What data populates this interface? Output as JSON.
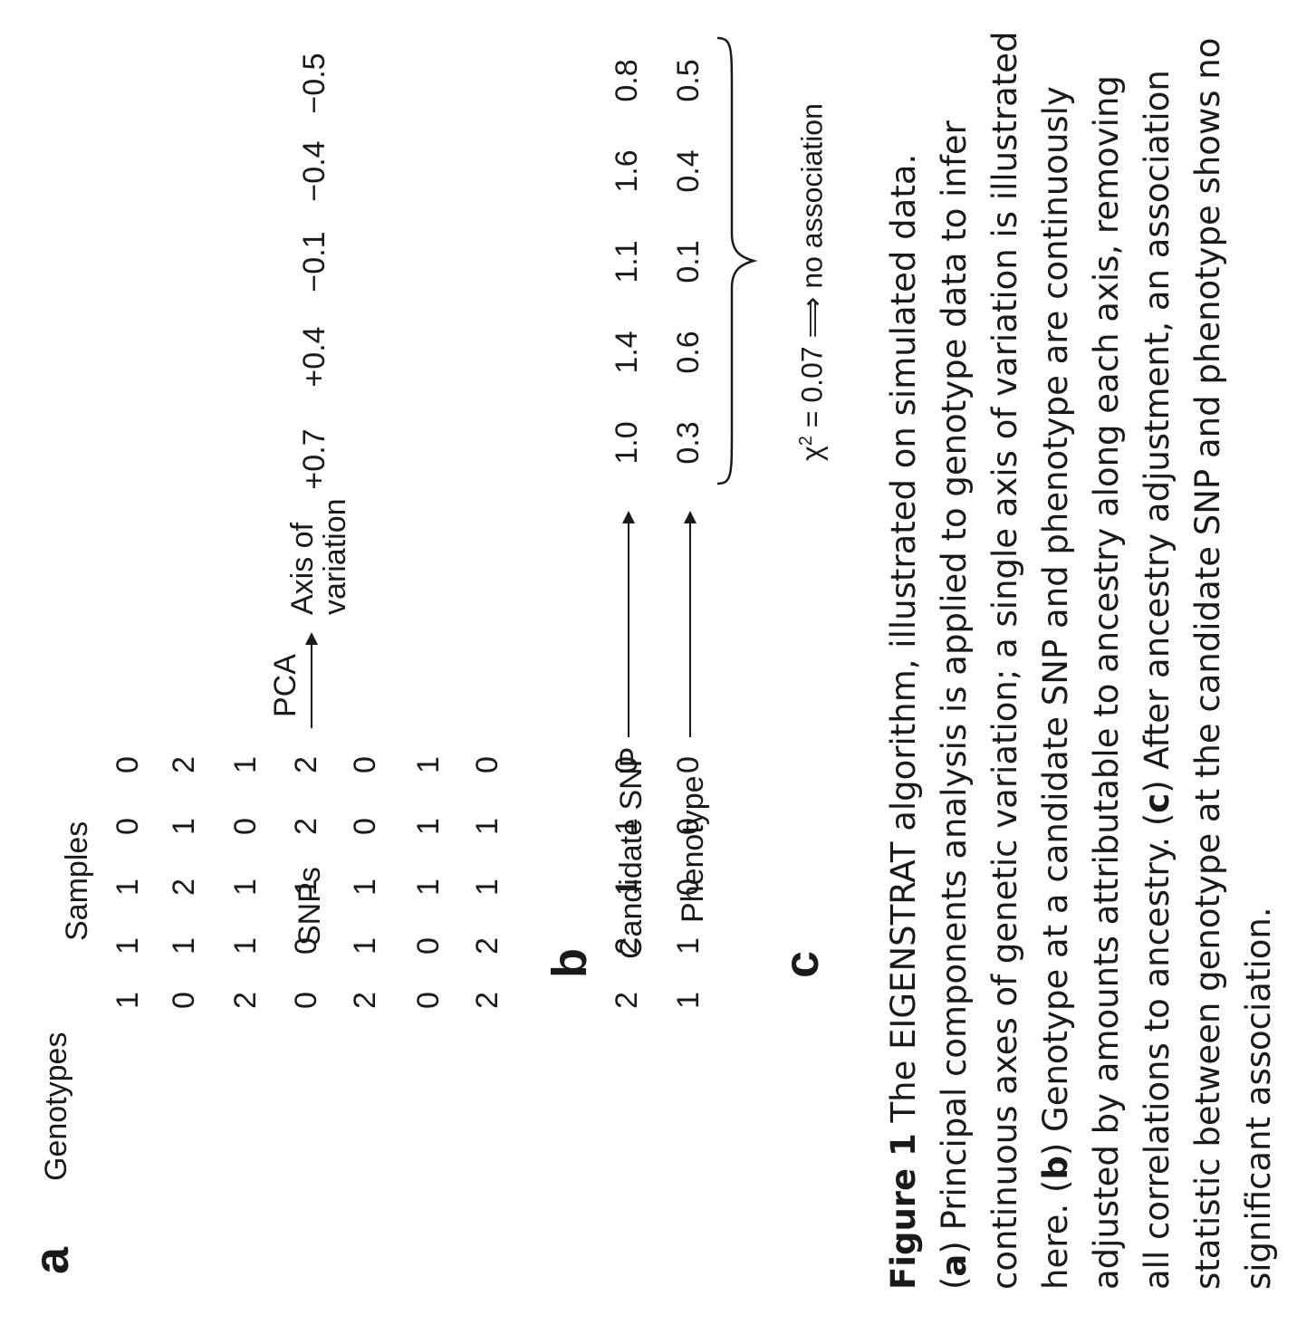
{
  "panel_a": {
    "letter": "a",
    "title": "Genotypes",
    "samples_label": "Samples",
    "snps_label": "SNPs",
    "matrix": [
      [
        "1",
        "1",
        "1",
        "0",
        "0"
      ],
      [
        "0",
        "1",
        "2",
        "1",
        "2"
      ],
      [
        "2",
        "1",
        "1",
        "0",
        "1"
      ],
      [
        "0",
        "0",
        "1",
        "2",
        "2"
      ],
      [
        "2",
        "1",
        "1",
        "0",
        "0"
      ],
      [
        "0",
        "0",
        "1",
        "1",
        "1"
      ],
      [
        "2",
        "2",
        "1",
        "1",
        "0"
      ]
    ],
    "pca_label": "PCA",
    "axis_label_line1": "Axis of",
    "axis_label_line2": "variation",
    "axis_values": [
      "+0.7",
      "+0.4",
      "−0.1",
      "−0.4",
      "−0.5"
    ]
  },
  "panel_b": {
    "letter": "b",
    "candidate_label": "Candidate SNP",
    "candidate_values": [
      "2",
      "2",
      "1",
      "1",
      "0"
    ],
    "phenotype_label": "Phenotype",
    "phenotype_values": [
      "1",
      "1",
      "0",
      "0",
      "0"
    ],
    "adjusted_candidate": [
      "1.0",
      "1.4",
      "1.1",
      "1.6",
      "0.8"
    ],
    "adjusted_phenotype": [
      "0.3",
      "0.6",
      "0.1",
      "0.4",
      "0.5"
    ]
  },
  "panel_c": {
    "letter": "c",
    "chi_symbol": "χ",
    "chi_exp": "2",
    "chi_rest": " = 0.07 ⟹ no association"
  },
  "caption": {
    "fig_label": "Figure 1",
    "l1": " The EIGENSTRAT algorithm, illustrated on simulated data.",
    "a_tag": "a",
    "l2_rest": " Principal components analysis is applied to genotype data to infer",
    "l3": "continuous axes of genetic variation; a single axis of variation is illustrated",
    "l4_pre": "here. (",
    "b_tag": "b",
    "l4_rest": ") Genotype at a candidate SNP and phenotype are continuously",
    "l5": "adjusted by amounts attributable to ancestry along each axis, removing",
    "l6_pre": "all correlations to ancestry. (",
    "c_tag": "c",
    "l6_rest": ") After ancestry adjustment, an association",
    "l7": "statistic between genotype at the candidate SNP and phenotype shows no",
    "l8": "significant association."
  }
}
